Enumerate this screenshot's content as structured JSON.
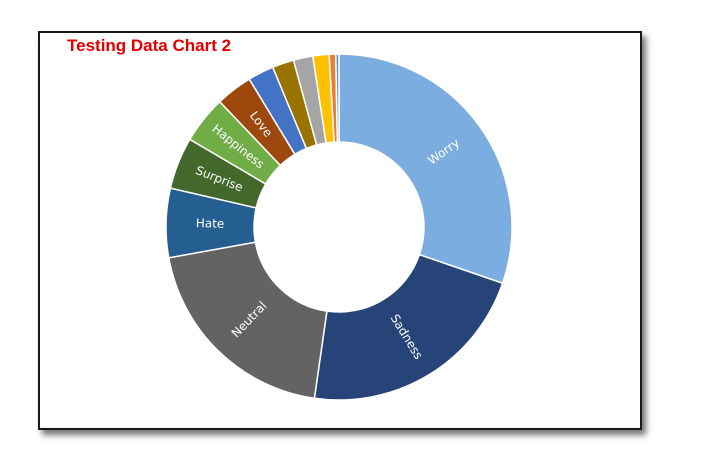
{
  "chart_data": {
    "type": "pie",
    "title": "Testing Data Chart 2",
    "title_color": "#e00000",
    "donut": true,
    "categories": [
      "Worry",
      "Sadness",
      "Neutral",
      "Hate",
      "Surprise",
      "Happiness",
      "Love",
      "",
      "",
      "",
      "",
      "",
      ""
    ],
    "values": [
      30.0,
      21.8,
      19.7,
      6.4,
      4.8,
      4.4,
      3.4,
      2.4,
      2.0,
      1.8,
      1.5,
      0.6,
      0.3
    ],
    "colors": [
      "#7cade0",
      "#264478",
      "#636363",
      "#255e91",
      "#43682b",
      "#70ad47",
      "#9e480e",
      "#4472c4",
      "#997300",
      "#a5a5a5",
      "#ffc000",
      "#ed7d31",
      "#5b9bd5"
    ],
    "legend": "none",
    "grid": false
  }
}
